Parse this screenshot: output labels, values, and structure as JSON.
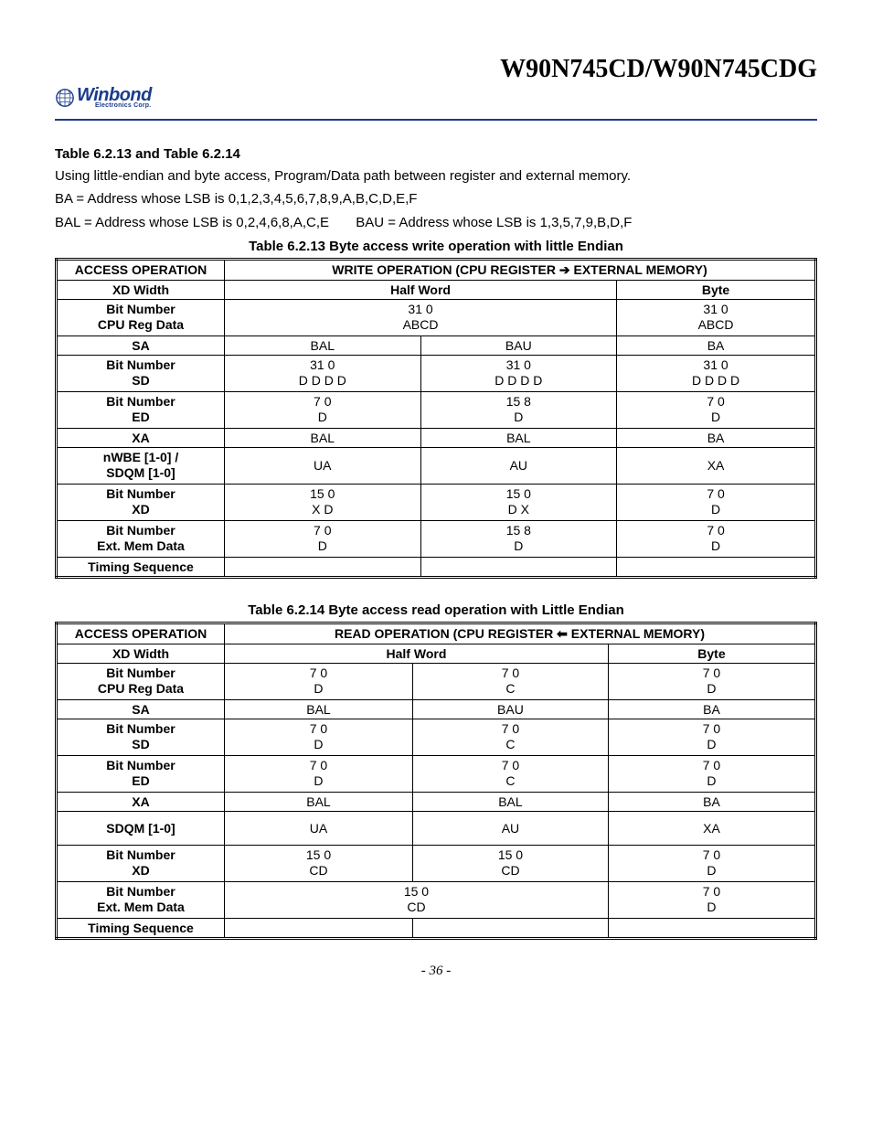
{
  "header": {
    "doc_title": "W90N745CD/W90N745CDG",
    "logo_main": "Winbond",
    "logo_sub": "Electronics Corp."
  },
  "intro": {
    "sec_title": "Table 6.2.13 and Table 6.2.14",
    "p1": "Using little-endian and byte access, Program/Data path between register and external memory.",
    "p2": "BA = Address whose LSB is 0,1,2,3,4,5,6,7,8,9,A,B,C,D,E,F",
    "p3a": "BAL = Address whose LSB is 0,2,4,6,8,A,C,E",
    "p3b": "BAU = Address whose LSB is 1,3,5,7,9,B,D,F"
  },
  "table13": {
    "caption": "Table 6.2.13 Byte access write operation with little Endian",
    "h_access": "ACCESS OPERATION",
    "h_write": "WRITE OPERATION (CPU REGISTER ➔ EXTERNAL MEMORY)",
    "h_xdwidth": "XD Width",
    "h_half": "Half Word",
    "h_byte": "Byte",
    "r1l": "Bit Number\nCPU Reg Data",
    "r1_hw_top": "31   0",
    "r1_hw_bot": "ABCD",
    "r1_b_top": "31   0",
    "r1_b_bot": "ABCD",
    "r2l": "SA",
    "r2_c1": "BAL",
    "r2_c2": "BAU",
    "r2_c3": "BA",
    "r3l": "Bit Number\nSD",
    "r3_c1_top": "31        0",
    "r3_c1_bot": "D  D  D  D",
    "r3_c2_top": "31        0",
    "r3_c2_bot": "D  D  D  D",
    "r3_c3_top": "31        0",
    "r3_c3_bot": "D  D  D  D",
    "r4l": "Bit Number\nED",
    "r4_c1_top": "7  0",
    "r4_c1_bot": "D",
    "r4_c2_top": "15  8",
    "r4_c2_bot": "D",
    "r4_c3_top": "7  0",
    "r4_c3_bot": "D",
    "r5l": "XA",
    "r5_c1": "BAL",
    "r5_c2": "BAL",
    "r5_c3": "BA",
    "r6l": "nWBE [1-0] /\nSDQM [1-0]",
    "r6_c1": "UA",
    "r6_c2": "AU",
    "r6_c3": "XA",
    "r7l": "Bit Number\nXD",
    "r7_c1_top": "15  0",
    "r7_c1_bot": "X D",
    "r7_c2_top": "15  0",
    "r7_c2_bot": "D X",
    "r7_c3_top": "7  0",
    "r7_c3_bot": "D",
    "r8l": "Bit Number\nExt. Mem Data",
    "r8_c1_top": "7  0",
    "r8_c1_bot": "D",
    "r8_c2_top": "15  8",
    "r8_c2_bot": "D",
    "r8_c3_top": "7  0",
    "r8_c3_bot": "D",
    "r9l": "Timing Sequence"
  },
  "table14": {
    "caption": "Table 6.2.14 Byte access read operation with Little Endian",
    "h_access": "ACCESS OPERATION",
    "h_read": "READ OPERATION (CPU REGISTER ⬅ EXTERNAL MEMORY)",
    "h_xdwidth": "XD Width",
    "h_half": "Half Word",
    "h_byte": "Byte",
    "r1l": "Bit Number\nCPU Reg Data",
    "r1_c1_top": "7  0",
    "r1_c1_bot": "D",
    "r1_c2_top": "7  0",
    "r1_c2_bot": "C",
    "r1_c3_top": "7  0",
    "r1_c3_bot": "D",
    "r2l": "SA",
    "r2_c1": "BAL",
    "r2_c2": "BAU",
    "r2_c3": "BA",
    "r3l": "Bit Number\nSD",
    "r3_c1_top": "7  0",
    "r3_c1_bot": "D",
    "r3_c2_top": "7  0",
    "r3_c2_bot": "C",
    "r3_c3_top": "7  0",
    "r3_c3_bot": "D",
    "r4l": "Bit Number\nED",
    "r4_c1_top": "7  0",
    "r4_c1_bot": "D",
    "r4_c2_top": "7  0",
    "r4_c2_bot": "C",
    "r4_c3_top": "7  0",
    "r4_c3_bot": "D",
    "r5l": "XA",
    "r5_c1": "BAL",
    "r5_c2": "BAL",
    "r5_c3": "BA",
    "r6l": "SDQM [1-0]",
    "r6_c1": "UA",
    "r6_c2": "AU",
    "r6_c3": "XA",
    "r7l": "Bit Number\nXD",
    "r7_c1_top": "15  0",
    "r7_c1_bot": "CD",
    "r7_c2_top": "15  0",
    "r7_c2_bot": "CD",
    "r7_c3_top": "7  0",
    "r7_c3_bot": "D",
    "r8l": "Bit Number\nExt. Mem Data",
    "r8_hw_top": "15  0",
    "r8_hw_bot": "CD",
    "r8_b_top": "7  0",
    "r8_b_bot": "D",
    "r9l": "Timing Sequence"
  },
  "footer": {
    "page_num": "- 36 -"
  }
}
